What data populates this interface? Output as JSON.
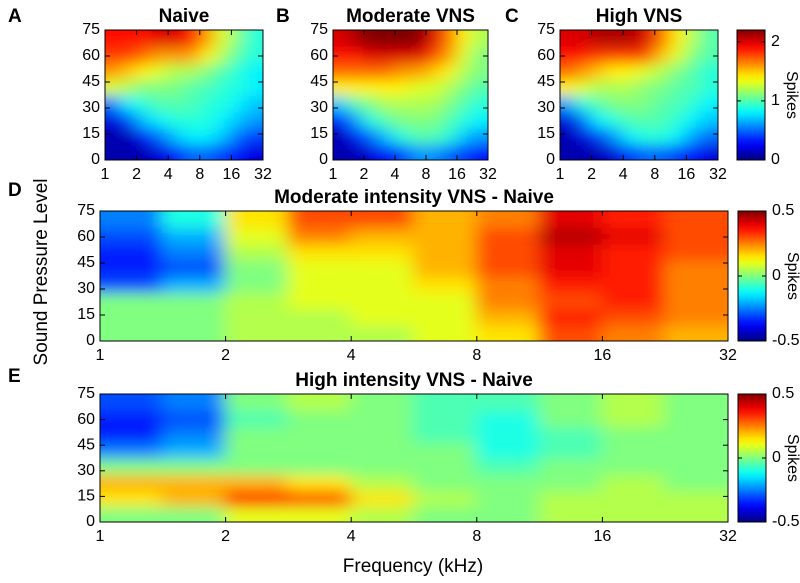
{
  "ylabel": "Sound Pressure Level",
  "xlabel": "Frequency (kHz)",
  "chart_data": [
    {
      "type": "heatmap",
      "panel_label": "A",
      "title": "Naive",
      "xscale": "log",
      "xlim": [
        1,
        32
      ],
      "ylim": [
        0,
        75
      ],
      "xticks": [
        1,
        2,
        4,
        8,
        16,
        32
      ],
      "yticks": [
        0,
        15,
        30,
        45,
        60,
        75
      ],
      "clim": [
        0,
        2.2
      ],
      "x": [
        1.19,
        1.68,
        2.38,
        3.36,
        4.76,
        6.73,
        9.51,
        13.45,
        19.03,
        26.91
      ],
      "y": [
        4.7,
        14.1,
        23.4,
        32.8,
        42.2,
        51.6,
        60.9,
        70.3
      ],
      "values": [
        [
          0.1,
          0.1,
          0.1,
          0.2,
          0.3,
          0.5,
          0.5,
          0.4,
          0.3,
          0.2
        ],
        [
          0.1,
          0.1,
          0.3,
          0.5,
          0.7,
          0.8,
          0.8,
          0.7,
          0.5,
          0.4
        ],
        [
          0.2,
          0.4,
          0.7,
          0.8,
          0.9,
          0.9,
          0.9,
          0.8,
          0.7,
          0.6
        ],
        [
          0.5,
          0.8,
          0.9,
          1.0,
          1.0,
          1.0,
          0.9,
          0.9,
          0.8,
          0.7
        ],
        [
          1.3,
          1.2,
          1.1,
          1.1,
          1.1,
          1.0,
          1.0,
          0.9,
          0.9,
          0.8
        ],
        [
          1.6,
          1.5,
          1.4,
          1.3,
          1.2,
          1.2,
          1.1,
          1.0,
          0.9,
          0.8
        ],
        [
          1.8,
          1.8,
          1.7,
          1.6,
          1.6,
          1.6,
          1.4,
          1.2,
          1.0,
          0.9
        ],
        [
          1.9,
          1.9,
          1.9,
          2.0,
          2.0,
          1.9,
          1.6,
          1.3,
          1.1,
          0.9
        ]
      ]
    },
    {
      "type": "heatmap",
      "panel_label": "B",
      "title": "Moderate VNS",
      "xscale": "log",
      "xlim": [
        1,
        32
      ],
      "ylim": [
        0,
        75
      ],
      "xticks": [
        1,
        2,
        4,
        8,
        16,
        32
      ],
      "yticks": [
        0,
        15,
        30,
        45,
        60,
        75
      ],
      "clim": [
        0,
        2.2
      ],
      "x": [
        1.19,
        1.68,
        2.38,
        3.36,
        4.76,
        6.73,
        9.51,
        13.45,
        19.03,
        26.91
      ],
      "y": [
        4.7,
        14.1,
        23.4,
        32.8,
        42.2,
        51.6,
        60.9,
        70.3
      ],
      "values": [
        [
          0.1,
          0.1,
          0.2,
          0.3,
          0.4,
          0.6,
          0.6,
          0.5,
          0.4,
          0.3
        ],
        [
          0.1,
          0.3,
          0.5,
          0.7,
          0.9,
          1.0,
          1.0,
          0.9,
          0.7,
          0.6
        ],
        [
          0.3,
          0.6,
          0.9,
          1.0,
          1.1,
          1.1,
          1.1,
          1.0,
          0.9,
          0.8
        ],
        [
          0.7,
          1.0,
          1.1,
          1.2,
          1.2,
          1.2,
          1.2,
          1.1,
          1.0,
          0.9
        ],
        [
          1.4,
          1.4,
          1.4,
          1.4,
          1.4,
          1.3,
          1.3,
          1.2,
          1.1,
          1.0
        ],
        [
          1.7,
          1.7,
          1.7,
          1.7,
          1.6,
          1.6,
          1.5,
          1.4,
          1.2,
          1.1
        ],
        [
          1.9,
          1.9,
          2.0,
          2.0,
          2.0,
          2.0,
          1.8,
          1.6,
          1.3,
          1.1
        ],
        [
          2.0,
          2.1,
          2.2,
          2.2,
          2.2,
          2.2,
          2.0,
          1.7,
          1.4,
          1.2
        ]
      ]
    },
    {
      "type": "heatmap",
      "panel_label": "C",
      "title": "High VNS",
      "xscale": "log",
      "xlim": [
        1,
        32
      ],
      "ylim": [
        0,
        75
      ],
      "xticks": [
        1,
        2,
        4,
        8,
        16,
        32
      ],
      "yticks": [
        0,
        15,
        30,
        45,
        60,
        75
      ],
      "clim": [
        0,
        2.2
      ],
      "cticks": [
        0,
        1,
        2
      ],
      "clabel": "Spikes",
      "x": [
        1.19,
        1.68,
        2.38,
        3.36,
        4.76,
        6.73,
        9.51,
        13.45,
        19.03,
        26.91
      ],
      "y": [
        4.7,
        14.1,
        23.4,
        32.8,
        42.2,
        51.6,
        60.9,
        70.3
      ],
      "values": [
        [
          0.1,
          0.1,
          0.1,
          0.2,
          0.4,
          0.5,
          0.5,
          0.4,
          0.3,
          0.2
        ],
        [
          0.1,
          0.2,
          0.4,
          0.6,
          0.8,
          0.9,
          0.9,
          0.8,
          0.6,
          0.5
        ],
        [
          0.2,
          0.5,
          0.8,
          0.9,
          1.0,
          1.0,
          1.0,
          0.9,
          0.8,
          0.7
        ],
        [
          0.6,
          0.9,
          1.0,
          1.1,
          1.1,
          1.1,
          1.0,
          1.0,
          0.9,
          0.8
        ],
        [
          1.4,
          1.3,
          1.2,
          1.2,
          1.2,
          1.1,
          1.1,
          1.0,
          1.0,
          0.9
        ],
        [
          1.7,
          1.6,
          1.5,
          1.4,
          1.4,
          1.3,
          1.2,
          1.1,
          1.0,
          0.9
        ],
        [
          1.9,
          1.9,
          1.8,
          1.8,
          1.8,
          1.8,
          1.5,
          1.3,
          1.1,
          1.0
        ],
        [
          2.0,
          2.0,
          2.1,
          2.1,
          2.1,
          2.0,
          1.7,
          1.4,
          1.2,
          1.0
        ]
      ]
    },
    {
      "type": "heatmap",
      "panel_label": "D",
      "title": "Moderate intensity VNS - Naive",
      "xscale": "log",
      "xlim": [
        1,
        32
      ],
      "ylim": [
        0,
        75
      ],
      "xticks": [
        1,
        2,
        4,
        8,
        16,
        32
      ],
      "yticks": [
        0,
        15,
        30,
        45,
        60,
        75
      ],
      "clim": [
        -0.5,
        0.5
      ],
      "cticks": [
        -0.5,
        0,
        0.5
      ],
      "clabel": "Spikes",
      "x": [
        1.19,
        1.68,
        2.38,
        3.36,
        4.76,
        6.73,
        9.51,
        13.45,
        19.03,
        26.91
      ],
      "y": [
        4.7,
        14.1,
        23.4,
        32.8,
        42.2,
        51.6,
        60.9,
        70.3
      ],
      "values": [
        [
          0.0,
          0.0,
          0.05,
          0.05,
          0.05,
          0.1,
          0.15,
          0.3,
          0.25,
          0.2
        ],
        [
          0.0,
          0.0,
          0.05,
          0.05,
          0.1,
          0.1,
          0.2,
          0.35,
          0.3,
          0.25
        ],
        [
          0.0,
          0.0,
          0.05,
          0.1,
          0.1,
          0.1,
          0.25,
          0.3,
          0.35,
          0.25
        ],
        [
          -0.3,
          -0.2,
          0.0,
          0.1,
          0.1,
          0.15,
          0.25,
          0.35,
          0.35,
          0.25
        ],
        [
          -0.35,
          -0.3,
          0.0,
          0.1,
          0.1,
          0.2,
          0.3,
          0.4,
          0.35,
          0.25
        ],
        [
          -0.35,
          -0.25,
          0.05,
          0.15,
          0.15,
          0.2,
          0.3,
          0.4,
          0.35,
          0.3
        ],
        [
          -0.3,
          -0.2,
          0.1,
          0.25,
          0.2,
          0.2,
          0.3,
          0.45,
          0.4,
          0.3
        ],
        [
          -0.25,
          -0.1,
          0.15,
          0.3,
          0.3,
          0.2,
          0.25,
          0.4,
          0.35,
          0.3
        ]
      ]
    },
    {
      "type": "heatmap",
      "panel_label": "E",
      "title": "High intensity VNS - Naive",
      "xscale": "log",
      "xlim": [
        1,
        32
      ],
      "ylim": [
        0,
        75
      ],
      "xticks": [
        1,
        2,
        4,
        8,
        16,
        32
      ],
      "yticks": [
        0,
        15,
        30,
        45,
        60,
        75
      ],
      "clim": [
        -0.5,
        0.5
      ],
      "cticks": [
        -0.5,
        0,
        0.5
      ],
      "clabel": "Spikes",
      "x": [
        1.19,
        1.68,
        2.38,
        3.36,
        4.76,
        6.73,
        9.51,
        13.45,
        19.03,
        26.91
      ],
      "y": [
        4.7,
        14.1,
        23.4,
        32.8,
        42.2,
        51.6,
        60.9,
        70.3
      ],
      "values": [
        [
          0.0,
          0.0,
          0.1,
          0.1,
          0.05,
          0.0,
          0.0,
          0.05,
          0.05,
          0.05
        ],
        [
          0.15,
          0.2,
          0.35,
          0.3,
          0.15,
          0.05,
          0.0,
          0.05,
          0.05,
          0.05
        ],
        [
          0.2,
          0.2,
          0.2,
          0.15,
          0.05,
          0.0,
          0.0,
          0.0,
          0.05,
          0.0
        ],
        [
          0.0,
          0.0,
          0.0,
          0.0,
          0.0,
          0.0,
          -0.05,
          0.0,
          0.0,
          0.0
        ],
        [
          -0.25,
          -0.2,
          0.0,
          0.0,
          0.0,
          0.0,
          -0.1,
          -0.05,
          0.0,
          0.0
        ],
        [
          -0.35,
          -0.25,
          0.0,
          0.0,
          0.0,
          -0.05,
          -0.1,
          -0.05,
          0.0,
          0.0
        ],
        [
          -0.35,
          -0.3,
          -0.05,
          0.0,
          0.0,
          -0.05,
          -0.1,
          0.0,
          0.05,
          0.0
        ],
        [
          -0.3,
          -0.25,
          0.0,
          0.05,
          0.0,
          -0.05,
          -0.05,
          0.0,
          0.05,
          0.0
        ]
      ]
    }
  ]
}
